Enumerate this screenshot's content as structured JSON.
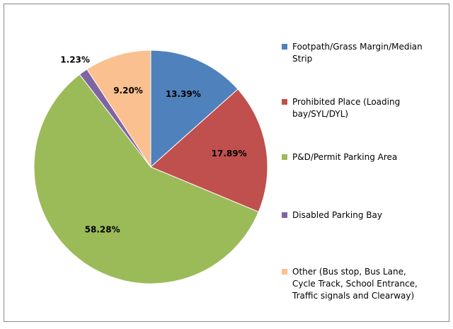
{
  "chart_data": {
    "type": "pie",
    "categories": [
      "Footpath/Grass Margin/Median Strip",
      "Prohibited Place (Loading bay/SYL/DYL)",
      "P&D/Permit Parking Area",
      "Disabled Parking Bay",
      "Other (Bus stop, Bus Lane, Cycle Track, School Entrance, Traffic signals and Clearway)"
    ],
    "values": [
      13.39,
      17.89,
      58.28,
      1.23,
      9.2
    ],
    "value_labels": [
      "13.39%",
      "17.89%",
      "58.28%",
      "1.23%",
      "9.20%"
    ],
    "colors": [
      "#4f81bd",
      "#c0504d",
      "#9bbb59",
      "#8064a2",
      "#fac090"
    ],
    "legend": "right"
  }
}
